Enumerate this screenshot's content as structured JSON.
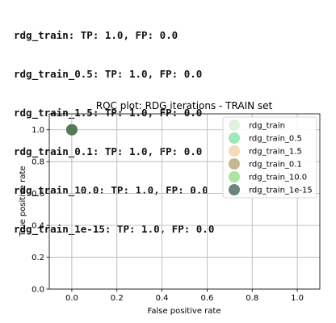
{
  "output": {
    "lines": [
      "rdg_train: TP: 1.0, FP: 0.0",
      "rdg_train_0.5: TP: 1.0, FP: 0.0",
      "rdg_train_1.5: TP: 1.0, FP: 0.0",
      "rdg_train_0.1: TP: 1.0, FP: 0.0",
      "rdg_train_10.0: TP: 1.0, FP: 0.0",
      "rdg_train_1e-15: TP: 1.0, FP: 0.0"
    ]
  },
  "chart_data": {
    "type": "scatter",
    "title": "ROC plot: RDG iterations -  TRAIN set",
    "xlabel": "False positive rate",
    "ylabel": "True positive rate",
    "xlim": [
      -0.1,
      1.1
    ],
    "ylim": [
      0.0,
      1.1
    ],
    "xticks": [
      0.0,
      0.2,
      0.4,
      0.6,
      0.8,
      1.0
    ],
    "yticks": [
      0.0,
      0.2,
      0.4,
      0.6,
      0.8,
      1.0
    ],
    "xtick_labels": [
      "0.0",
      "0.2",
      "0.4",
      "0.6",
      "0.8",
      "1.0"
    ],
    "ytick_labels": [
      "0.0",
      "0.2",
      "0.4",
      "0.6",
      "0.8",
      "1.0"
    ],
    "grid": true,
    "legend_position": "top-right",
    "series": [
      {
        "name": "rdg_train",
        "x": [
          0.0
        ],
        "y": [
          1.0
        ],
        "color": "#d6ecd2"
      },
      {
        "name": "rdg_train_0.5",
        "x": [
          0.0
        ],
        "y": [
          1.0
        ],
        "color": "#7fe0a0"
      },
      {
        "name": "rdg_train_1.5",
        "x": [
          0.0
        ],
        "y": [
          1.0
        ],
        "color": "#f2cf9f"
      },
      {
        "name": "rdg_train_0.1",
        "x": [
          0.0
        ],
        "y": [
          1.0
        ],
        "color": "#b5a06e"
      },
      {
        "name": "rdg_train_10.0",
        "x": [
          0.0
        ],
        "y": [
          1.0
        ],
        "color": "#8edc82"
      },
      {
        "name": "rdg_train_1e-15",
        "x": [
          0.0
        ],
        "y": [
          1.0
        ],
        "color": "#3c5c4c"
      }
    ]
  }
}
